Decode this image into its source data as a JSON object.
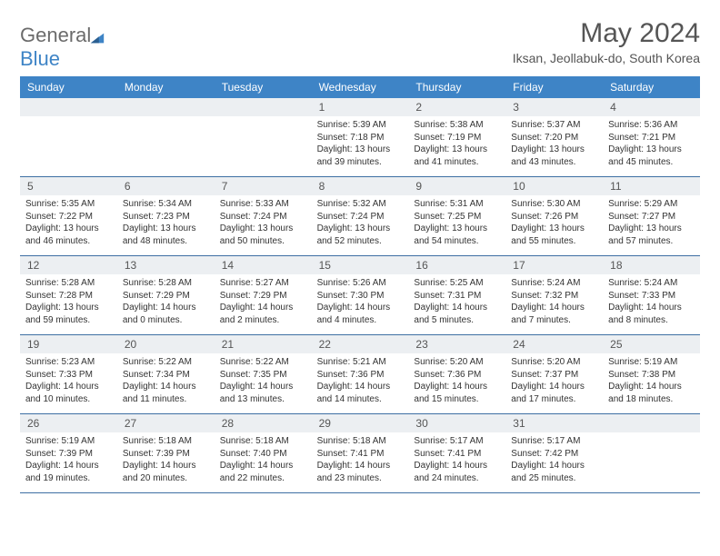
{
  "colors": {
    "header_bar": "#3e84c6",
    "day_strip": "#eceff2",
    "week_divider": "#3e6fa3",
    "logo_gray": "#6b6b6b",
    "logo_blue": "#3e84c6",
    "text": "#333333",
    "title_text": "#555555",
    "background": "#ffffff"
  },
  "typography": {
    "title_fontsize": 30,
    "location_fontsize": 14,
    "dow_fontsize": 12,
    "daynum_fontsize": 12,
    "body_fontsize": 10
  },
  "logo": {
    "part1": "General",
    "part2": "Blue"
  },
  "title": "May 2024",
  "location": "Iksan, Jeollabuk-do, South Korea",
  "dow": [
    "Sunday",
    "Monday",
    "Tuesday",
    "Wednesday",
    "Thursday",
    "Friday",
    "Saturday"
  ],
  "labels": {
    "sunrise": "Sunrise:",
    "sunset": "Sunset:",
    "daylight": "Daylight:"
  },
  "weeks": [
    [
      {
        "n": ""
      },
      {
        "n": ""
      },
      {
        "n": ""
      },
      {
        "n": "1",
        "sr": "5:39 AM",
        "ss": "7:18 PM",
        "dl": "13 hours and 39 minutes."
      },
      {
        "n": "2",
        "sr": "5:38 AM",
        "ss": "7:19 PM",
        "dl": "13 hours and 41 minutes."
      },
      {
        "n": "3",
        "sr": "5:37 AM",
        "ss": "7:20 PM",
        "dl": "13 hours and 43 minutes."
      },
      {
        "n": "4",
        "sr": "5:36 AM",
        "ss": "7:21 PM",
        "dl": "13 hours and 45 minutes."
      }
    ],
    [
      {
        "n": "5",
        "sr": "5:35 AM",
        "ss": "7:22 PM",
        "dl": "13 hours and 46 minutes."
      },
      {
        "n": "6",
        "sr": "5:34 AM",
        "ss": "7:23 PM",
        "dl": "13 hours and 48 minutes."
      },
      {
        "n": "7",
        "sr": "5:33 AM",
        "ss": "7:24 PM",
        "dl": "13 hours and 50 minutes."
      },
      {
        "n": "8",
        "sr": "5:32 AM",
        "ss": "7:24 PM",
        "dl": "13 hours and 52 minutes."
      },
      {
        "n": "9",
        "sr": "5:31 AM",
        "ss": "7:25 PM",
        "dl": "13 hours and 54 minutes."
      },
      {
        "n": "10",
        "sr": "5:30 AM",
        "ss": "7:26 PM",
        "dl": "13 hours and 55 minutes."
      },
      {
        "n": "11",
        "sr": "5:29 AM",
        "ss": "7:27 PM",
        "dl": "13 hours and 57 minutes."
      }
    ],
    [
      {
        "n": "12",
        "sr": "5:28 AM",
        "ss": "7:28 PM",
        "dl": "13 hours and 59 minutes."
      },
      {
        "n": "13",
        "sr": "5:28 AM",
        "ss": "7:29 PM",
        "dl": "14 hours and 0 minutes."
      },
      {
        "n": "14",
        "sr": "5:27 AM",
        "ss": "7:29 PM",
        "dl": "14 hours and 2 minutes."
      },
      {
        "n": "15",
        "sr": "5:26 AM",
        "ss": "7:30 PM",
        "dl": "14 hours and 4 minutes."
      },
      {
        "n": "16",
        "sr": "5:25 AM",
        "ss": "7:31 PM",
        "dl": "14 hours and 5 minutes."
      },
      {
        "n": "17",
        "sr": "5:24 AM",
        "ss": "7:32 PM",
        "dl": "14 hours and 7 minutes."
      },
      {
        "n": "18",
        "sr": "5:24 AM",
        "ss": "7:33 PM",
        "dl": "14 hours and 8 minutes."
      }
    ],
    [
      {
        "n": "19",
        "sr": "5:23 AM",
        "ss": "7:33 PM",
        "dl": "14 hours and 10 minutes."
      },
      {
        "n": "20",
        "sr": "5:22 AM",
        "ss": "7:34 PM",
        "dl": "14 hours and 11 minutes."
      },
      {
        "n": "21",
        "sr": "5:22 AM",
        "ss": "7:35 PM",
        "dl": "14 hours and 13 minutes."
      },
      {
        "n": "22",
        "sr": "5:21 AM",
        "ss": "7:36 PM",
        "dl": "14 hours and 14 minutes."
      },
      {
        "n": "23",
        "sr": "5:20 AM",
        "ss": "7:36 PM",
        "dl": "14 hours and 15 minutes."
      },
      {
        "n": "24",
        "sr": "5:20 AM",
        "ss": "7:37 PM",
        "dl": "14 hours and 17 minutes."
      },
      {
        "n": "25",
        "sr": "5:19 AM",
        "ss": "7:38 PM",
        "dl": "14 hours and 18 minutes."
      }
    ],
    [
      {
        "n": "26",
        "sr": "5:19 AM",
        "ss": "7:39 PM",
        "dl": "14 hours and 19 minutes."
      },
      {
        "n": "27",
        "sr": "5:18 AM",
        "ss": "7:39 PM",
        "dl": "14 hours and 20 minutes."
      },
      {
        "n": "28",
        "sr": "5:18 AM",
        "ss": "7:40 PM",
        "dl": "14 hours and 22 minutes."
      },
      {
        "n": "29",
        "sr": "5:18 AM",
        "ss": "7:41 PM",
        "dl": "14 hours and 23 minutes."
      },
      {
        "n": "30",
        "sr": "5:17 AM",
        "ss": "7:41 PM",
        "dl": "14 hours and 24 minutes."
      },
      {
        "n": "31",
        "sr": "5:17 AM",
        "ss": "7:42 PM",
        "dl": "14 hours and 25 minutes."
      },
      {
        "n": ""
      }
    ]
  ]
}
